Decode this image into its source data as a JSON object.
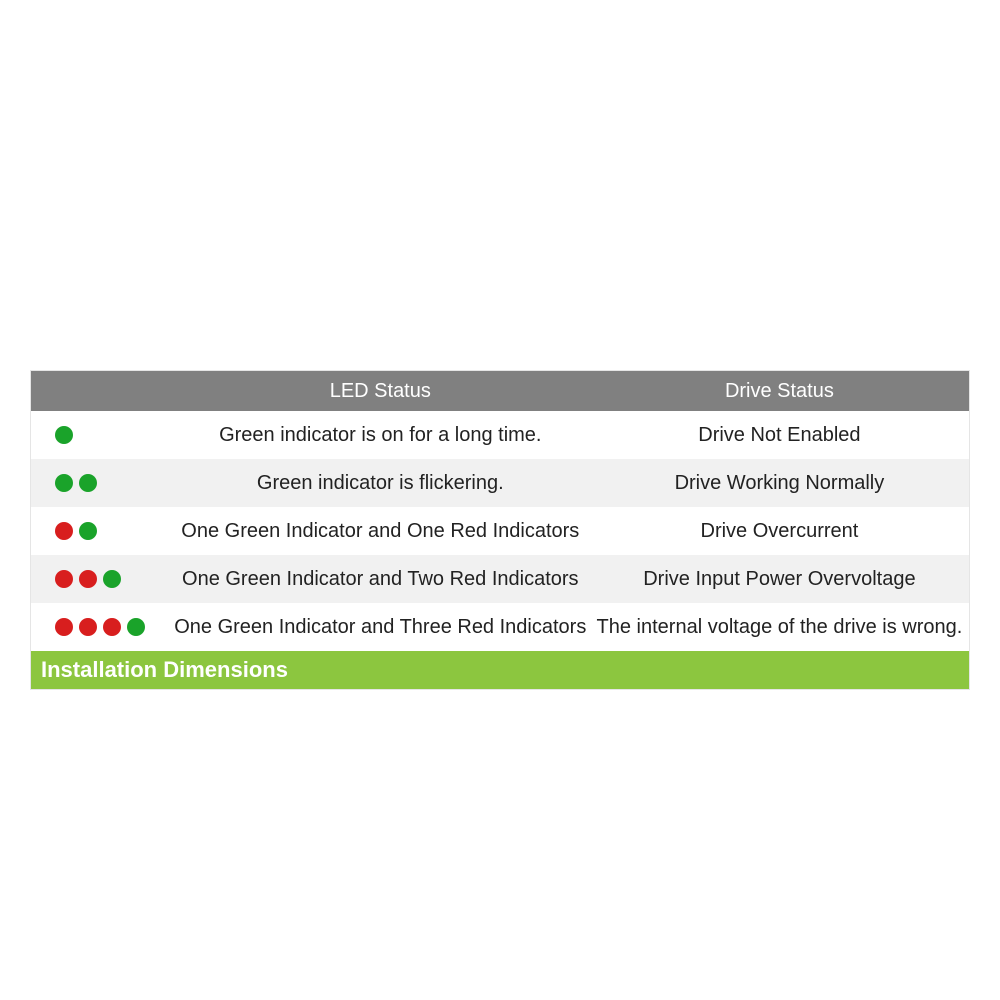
{
  "colors": {
    "header_bg": "#808080",
    "header_text": "#ffffff",
    "row_alt_bg": "#f1f1f1",
    "row_bg": "#ffffff",
    "text": "#222222",
    "section_bg": "#8cc63f",
    "section_text": "#ffffff",
    "led_green": "#1aa32a",
    "led_red": "#d81e1e",
    "border": "#e5e5e5"
  },
  "table": {
    "headers": {
      "led": "LED Status",
      "drive": "Drive Status"
    },
    "rows": [
      {
        "leds": [
          "green"
        ],
        "led_text": "Green indicator is on for a long time.",
        "drive_text": "Drive Not Enabled",
        "alt": false
      },
      {
        "leds": [
          "green",
          "green"
        ],
        "led_text": "Green indicator is flickering.",
        "drive_text": "Drive Working Normally",
        "alt": true
      },
      {
        "leds": [
          "red",
          "green"
        ],
        "led_text": "One Green Indicator and One Red Indicators",
        "drive_text": "Drive Overcurrent",
        "alt": false
      },
      {
        "leds": [
          "red",
          "red",
          "green"
        ],
        "led_text": "One Green Indicator and Two Red Indicators",
        "drive_text": "Drive Input Power Overvoltage",
        "alt": true
      },
      {
        "leds": [
          "red",
          "red",
          "red",
          "green"
        ],
        "led_text": "One Green Indicator and Three Red Indicators",
        "drive_text": "The internal voltage of the drive is wrong.",
        "alt": false
      }
    ]
  },
  "section_title": "Installation Dimensions"
}
